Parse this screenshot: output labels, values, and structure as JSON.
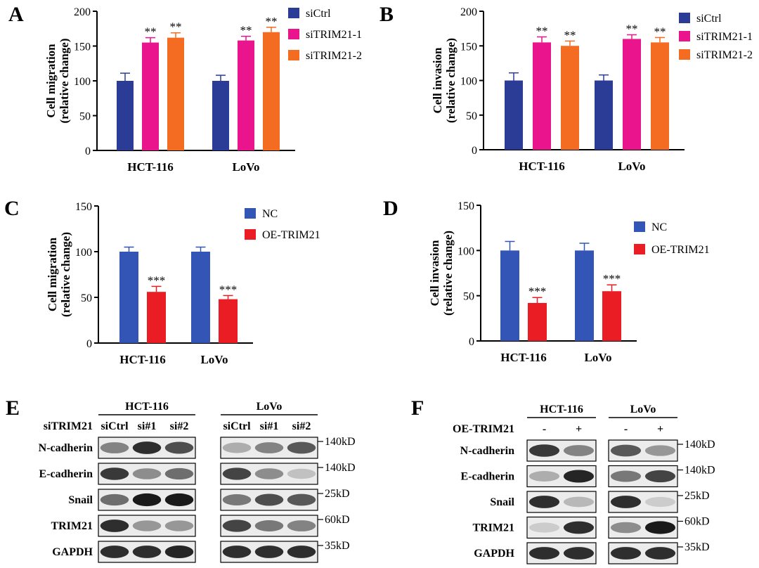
{
  "colors": {
    "blue": "#2a3c96",
    "magenta": "#ea148c",
    "orange": "#f36c21",
    "nc_blue": "#3355b5",
    "red": "#ea1c24",
    "band": "#1a1a1a"
  },
  "chart_data": [
    {
      "panel": "A",
      "type": "bar",
      "ylabel_line1": "Cell migration",
      "ylabel_line2": "(relative change)",
      "ylim": [
        0,
        200
      ],
      "yticks": [
        "0",
        "50",
        "100",
        "150",
        "200"
      ],
      "categories": [
        "HCT-116",
        "LoVo"
      ],
      "series": [
        {
          "name": "siCtrl",
          "values": [
            100,
            100
          ],
          "errors": [
            11,
            8
          ],
          "color_key": "blue",
          "sig": [
            "",
            ""
          ]
        },
        {
          "name": "siTRIM21-1",
          "values": [
            155,
            158
          ],
          "errors": [
            7,
            6
          ],
          "color_key": "magenta",
          "sig": [
            "**",
            "**"
          ]
        },
        {
          "name": "siTRIM21-2",
          "values": [
            162,
            170
          ],
          "errors": [
            7,
            7
          ],
          "color_key": "orange",
          "sig": [
            "**",
            "**"
          ]
        }
      ]
    },
    {
      "panel": "B",
      "type": "bar",
      "ylabel_line1": "Cell invasion",
      "ylabel_line2": "(relative change)",
      "ylim": [
        0,
        200
      ],
      "yticks": [
        "0",
        "50",
        "100",
        "150",
        "200"
      ],
      "categories": [
        "HCT-116",
        "LoVo"
      ],
      "series": [
        {
          "name": "siCtrl",
          "values": [
            100,
            100
          ],
          "errors": [
            11,
            8
          ],
          "color_key": "blue",
          "sig": [
            "",
            ""
          ]
        },
        {
          "name": "siTRIM21-1",
          "values": [
            155,
            160
          ],
          "errors": [
            8,
            6
          ],
          "color_key": "magenta",
          "sig": [
            "**",
            "**"
          ]
        },
        {
          "name": "siTRIM21-2",
          "values": [
            150,
            155
          ],
          "errors": [
            7,
            7
          ],
          "color_key": "orange",
          "sig": [
            "**",
            "**"
          ]
        }
      ]
    },
    {
      "panel": "C",
      "type": "bar",
      "ylabel_line1": "Cell migration",
      "ylabel_line2": "(relative change)",
      "ylim": [
        0,
        150
      ],
      "yticks": [
        "0",
        "50",
        "100",
        "150"
      ],
      "categories": [
        "HCT-116",
        "LoVo"
      ],
      "series": [
        {
          "name": "NC",
          "values": [
            100,
            100
          ],
          "errors": [
            5,
            5
          ],
          "color_key": "nc_blue",
          "sig": [
            "",
            ""
          ]
        },
        {
          "name": "OE-TRIM21",
          "values": [
            56,
            48
          ],
          "errors": [
            6,
            4
          ],
          "color_key": "red",
          "sig": [
            "***",
            "***"
          ]
        }
      ]
    },
    {
      "panel": "D",
      "type": "bar",
      "ylabel_line1": "Cell invasion",
      "ylabel_line2": "(relative change)",
      "ylim": [
        0,
        150
      ],
      "yticks": [
        "0",
        "50",
        "100",
        "150"
      ],
      "categories": [
        "HCT-116",
        "LoVo"
      ],
      "series": [
        {
          "name": "NC",
          "values": [
            100,
            100
          ],
          "errors": [
            10,
            8
          ],
          "color_key": "nc_blue",
          "sig": [
            "",
            ""
          ]
        },
        {
          "name": "OE-TRIM21",
          "values": [
            42,
            55
          ],
          "errors": [
            6,
            7
          ],
          "color_key": "red",
          "sig": [
            "***",
            "***"
          ]
        }
      ]
    }
  ],
  "blot_E": {
    "panel": "E",
    "condition_label": "siTRIM21",
    "groups": [
      "HCT-116",
      "LoVo"
    ],
    "lanes": [
      "siCtrl",
      "si#1",
      "si#2"
    ],
    "proteins": [
      "N-cadherin",
      "E-cadherin",
      "Snail",
      "TRIM21",
      "GAPDH"
    ],
    "sizes": [
      "140kD",
      "140kD",
      "25kD",
      "60kD",
      "35kD"
    ],
    "intensity": [
      [
        [
          0.5,
          0.9,
          0.75
        ],
        [
          0.3,
          0.5,
          0.7
        ]
      ],
      [
        [
          0.85,
          0.45,
          0.6
        ],
        [
          0.8,
          0.45,
          0.2
        ]
      ],
      [
        [
          0.6,
          1.0,
          1.0
        ],
        [
          0.55,
          0.75,
          0.7
        ]
      ],
      [
        [
          0.9,
          0.4,
          0.4
        ],
        [
          0.8,
          0.55,
          0.5
        ]
      ],
      [
        [
          0.9,
          0.9,
          0.95
        ],
        [
          0.9,
          0.9,
          0.9
        ]
      ]
    ]
  },
  "blot_F": {
    "panel": "F",
    "condition_label": "OE-TRIM21",
    "groups": [
      "HCT-116",
      "LoVo"
    ],
    "lanes": [
      "-",
      "+"
    ],
    "proteins": [
      "N-cadherin",
      "E-cadherin",
      "Snail",
      "TRIM21",
      "GAPDH"
    ],
    "sizes": [
      "140kD",
      "140kD",
      "25kD",
      "60kD",
      "35kD"
    ],
    "intensity": [
      [
        [
          0.85,
          0.5
        ],
        [
          0.7,
          0.4
        ]
      ],
      [
        [
          0.3,
          0.95
        ],
        [
          0.55,
          0.8
        ]
      ],
      [
        [
          0.9,
          0.25
        ],
        [
          0.9,
          0.15
        ]
      ],
      [
        [
          0.15,
          0.9
        ],
        [
          0.45,
          1.0
        ]
      ],
      [
        [
          0.9,
          0.9
        ],
        [
          0.9,
          0.9
        ]
      ]
    ]
  }
}
